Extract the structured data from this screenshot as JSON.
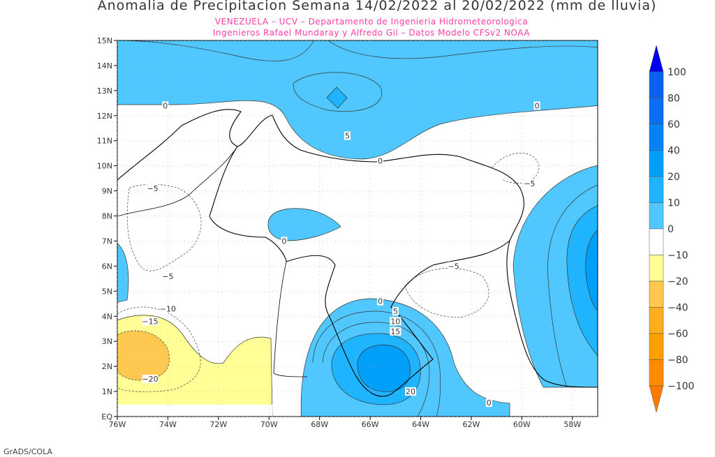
{
  "title": "Anomalia de Precipitacion Semana 14/02/2022 al 20/02/2022 (mm de lluvia)",
  "subtitle1": "VENEZUELA – UCV – Departamento de Ingenieria Hidrometeorologica",
  "subtitle2": "Ingenieros Rafael Mundaray y Alfredo Gil – Datos Modelo CFSv2 NOAA",
  "credit": "GrADS/COLA",
  "map": {
    "lon_range": [
      -76,
      -57
    ],
    "lat_range": [
      0,
      15
    ],
    "x_ticks": [
      {
        "lon": -76,
        "label": "76W"
      },
      {
        "lon": -74,
        "label": "74W"
      },
      {
        "lon": -72,
        "label": "72W"
      },
      {
        "lon": -70,
        "label": "70W"
      },
      {
        "lon": -68,
        "label": "68W"
      },
      {
        "lon": -66,
        "label": "66W"
      },
      {
        "lon": -64,
        "label": "64W"
      },
      {
        "lon": -62,
        "label": "62W"
      },
      {
        "lon": -60,
        "label": "60W"
      },
      {
        "lon": -58,
        "label": "58W"
      }
    ],
    "y_ticks": [
      {
        "lat": 0,
        "label": "EQ"
      },
      {
        "lat": 1,
        "label": "1N"
      },
      {
        "lat": 2,
        "label": "2N"
      },
      {
        "lat": 3,
        "label": "3N"
      },
      {
        "lat": 4,
        "label": "4N"
      },
      {
        "lat": 5,
        "label": "5N"
      },
      {
        "lat": 6,
        "label": "6N"
      },
      {
        "lat": 7,
        "label": "7N"
      },
      {
        "lat": 8,
        "label": "8N"
      },
      {
        "lat": 9,
        "label": "9N"
      },
      {
        "lat": 10,
        "label": "10N"
      },
      {
        "lat": 11,
        "label": "11N"
      },
      {
        "lat": 12,
        "label": "12N"
      },
      {
        "lat": 13,
        "label": "13N"
      },
      {
        "lat": 14,
        "label": "14N"
      },
      {
        "lat": 15,
        "label": "15N"
      }
    ],
    "contour_labels": [
      {
        "text": "0",
        "lon": -74.1,
        "lat": 12.4
      },
      {
        "text": "5",
        "lon": -66.9,
        "lat": 11.2
      },
      {
        "text": "0",
        "lon": -65.6,
        "lat": 10.2
      },
      {
        "text": "0",
        "lon": -59.4,
        "lat": 12.4
      },
      {
        "text": "−5",
        "lon": -74.6,
        "lat": 9.1
      },
      {
        "text": "−5",
        "lon": -59.7,
        "lat": 9.3
      },
      {
        "text": "0",
        "lon": -69.4,
        "lat": 7.0
      },
      {
        "text": "−5",
        "lon": -74.0,
        "lat": 5.6
      },
      {
        "text": "−5",
        "lon": -62.7,
        "lat": 6.0
      },
      {
        "text": "−10",
        "lon": -74.0,
        "lat": 4.3
      },
      {
        "text": "−15",
        "lon": -74.7,
        "lat": 3.8
      },
      {
        "text": "−20",
        "lon": -74.7,
        "lat": 1.5
      },
      {
        "text": "0",
        "lon": -65.6,
        "lat": 4.6
      },
      {
        "text": "5",
        "lon": -65.0,
        "lat": 4.2
      },
      {
        "text": "10",
        "lon": -65.0,
        "lat": 3.8
      },
      {
        "text": "15",
        "lon": -65.0,
        "lat": 3.4
      },
      {
        "text": "20",
        "lon": -64.4,
        "lat": 1.0
      },
      {
        "text": "0",
        "lon": -61.3,
        "lat": 0.55
      }
    ]
  },
  "colorbar": {
    "levels": [
      {
        "label": "100",
        "color": "#0a5ff5"
      },
      {
        "label": "80",
        "color": "#0a6ff5"
      },
      {
        "label": "60",
        "color": "#0582f5"
      },
      {
        "label": "40",
        "color": "#00a0fa"
      },
      {
        "label": "20",
        "color": "#1eb4ff"
      },
      {
        "label": "10",
        "color": "#50c8ff"
      },
      {
        "label": "0",
        "color": "#ffffff"
      },
      {
        "label": "−10",
        "color": "#ffff96"
      },
      {
        "label": "−20",
        "color": "#ffc850"
      },
      {
        "label": "−40",
        "color": "#ffaf1e"
      },
      {
        "label": "−60",
        "color": "#ffa000"
      },
      {
        "label": "−80",
        "color": "#ff8c00"
      },
      {
        "label": "−100",
        "color": ""
      }
    ],
    "top_color": "#0000f0",
    "bottom_color": "#ff7800"
  }
}
